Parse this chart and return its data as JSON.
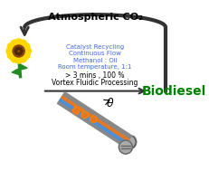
{
  "title": "Atmospheric CO₂",
  "biodiesel_text": "Biodiesel",
  "vfp_line1": "Vortex Fluidic Processing",
  "vfp_line2": "> 3 mins , 100 %",
  "blue_text_lines": [
    "Room temperature, 1:1",
    "Methanol : Oil",
    "Continuous Flow",
    "Catalyst Recycling"
  ],
  "theta_label": "θ",
  "bg_color": "#ffffff",
  "black_text_color": "#000000",
  "blue_text_color": "#4169E1",
  "green_text_color": "#008000",
  "tube_blue": "#4a90d9",
  "tube_orange": "#e87722",
  "tube_gray": "#888888",
  "arrow_color": "#333333",
  "figsize": [
    2.32,
    1.89
  ],
  "dpi": 100
}
